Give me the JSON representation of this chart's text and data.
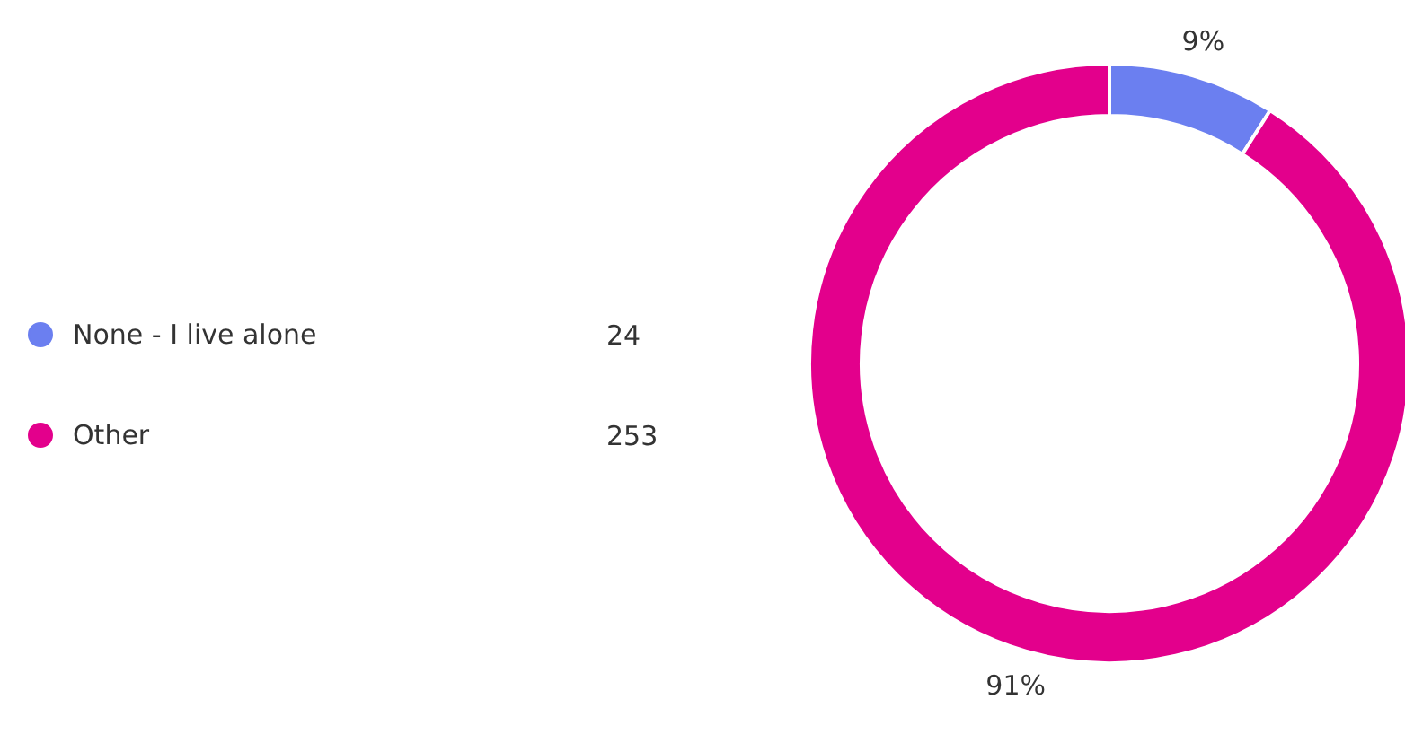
{
  "chart_data": {
    "type": "donut",
    "categories": [
      "None - I live alone",
      "Other"
    ],
    "values": [
      9,
      91
    ],
    "colors": [
      "#6b7ff0",
      "#e3008c"
    ],
    "value_labels": [
      "9%",
      "91%"
    ],
    "annotations": [
      "24",
      "253"
    ],
    "legend": "left"
  }
}
